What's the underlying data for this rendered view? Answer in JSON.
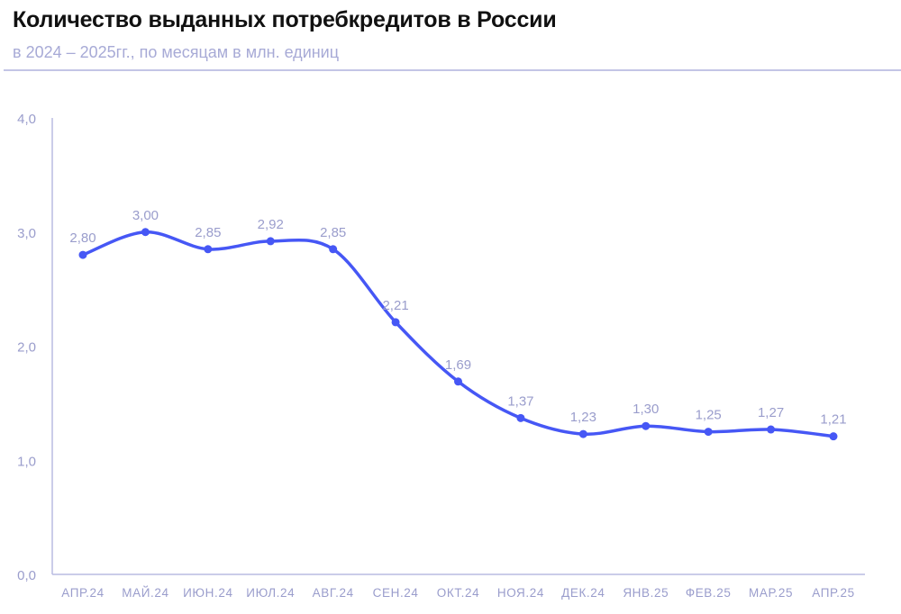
{
  "header": {
    "title": "Количество выданных потребкредитов в России",
    "subtitle": "в 2024 – 2025гг., по месяцам в млн. единиц"
  },
  "colors": {
    "line": "#4657f5",
    "label": "#9a9dcc",
    "axis": "#b9bce2"
  },
  "chart_data": {
    "type": "line",
    "title": "Количество выданных потребкредитов в России",
    "subtitle": "в 2024 – 2025гг., по месяцам в млн. единиц",
    "categories": [
      "АПР.24",
      "МАЙ.24",
      "ИЮН.24",
      "ИЮЛ.24",
      "АВГ.24",
      "СЕН.24",
      "ОКТ.24",
      "НОЯ.24",
      "ДЕК.24",
      "ЯНВ.25",
      "ФЕВ.25",
      "МАР.25",
      "АПР.25"
    ],
    "values": [
      2.8,
      3.0,
      2.85,
      2.92,
      2.85,
      2.21,
      1.69,
      1.37,
      1.23,
      1.3,
      1.25,
      1.27,
      1.21
    ],
    "data_labels": [
      "2,80",
      "3,00",
      "2,85",
      "2,92",
      "2,85",
      "2,21",
      "1,69",
      "1,37",
      "1,23",
      "1,30",
      "1,25",
      "1,27",
      "1,21"
    ],
    "yticks": [
      0,
      1,
      2,
      3,
      4
    ],
    "ytick_labels": [
      "0,0",
      "1,0",
      "2,0",
      "3,0",
      "4,0"
    ],
    "ylim": [
      0,
      4
    ],
    "xlabel": "",
    "ylabel": "",
    "grid": false,
    "legend": "none"
  }
}
